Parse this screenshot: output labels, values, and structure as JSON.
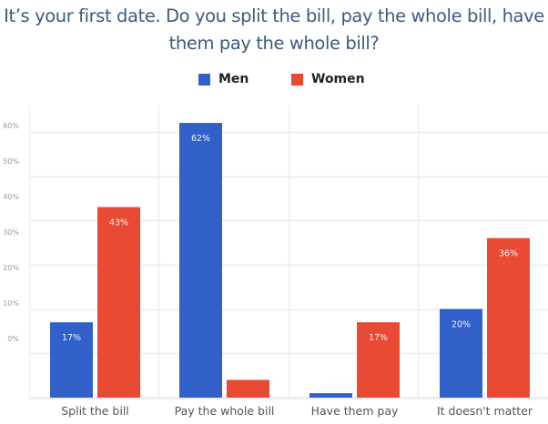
{
  "chart_data": {
    "type": "bar",
    "title": "It’s your first date. Do you split the bill, pay the whole bill, have them pay the whole bill?",
    "title_lines": [
      "It’s your first date. Do you split the bill, pay the whole bill, have",
      "them pay the whole bill?"
    ],
    "categories": [
      "Split the bill",
      "Pay the whole bill",
      "Have them pay",
      "It doesn't matter"
    ],
    "series": [
      {
        "name": "Men",
        "color": "#3060c8",
        "values": [
          17,
          62,
          1,
          20
        ],
        "labels": [
          "17%",
          "62%",
          "",
          "20%"
        ]
      },
      {
        "name": "Women",
        "color": "#e84a33",
        "values": [
          43,
          4,
          17,
          36
        ],
        "labels": [
          "43%",
          "",
          "17%",
          "36%"
        ]
      }
    ],
    "yticks": [
      "0%",
      "10%",
      "20%",
      "30%",
      "40%",
      "50%",
      "60%"
    ],
    "ylim": [
      0,
      60
    ],
    "xlabel": "",
    "ylabel": "",
    "grid": true,
    "legend": "top-center"
  }
}
